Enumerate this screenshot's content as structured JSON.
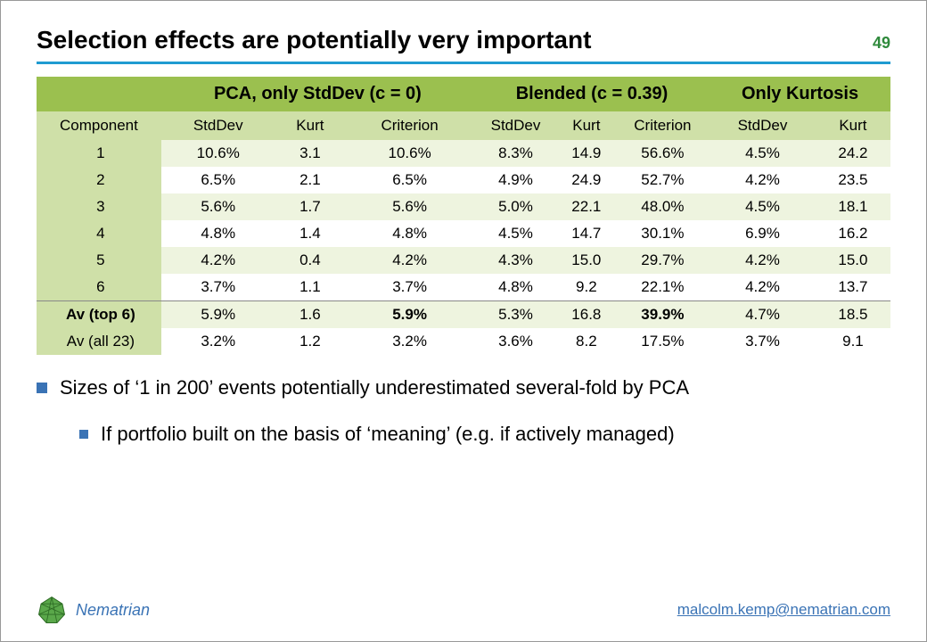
{
  "colors": {
    "accent_rule": "#1f9bd1",
    "accent_green": "#2f8a3c",
    "header_bg": "#9bc04f",
    "subheader_bg": "#cfe0a8",
    "row_even_bg": "#eef4df",
    "row_odd_bg": "#ffffff",
    "bullet_fill": "#3a73b5",
    "brand_color": "#3a73b5",
    "email_color": "#3a73b5",
    "text_color": "#000000"
  },
  "title": "Selection effects are potentially very important",
  "page_number": "49",
  "table": {
    "group_headers": [
      "",
      "PCA, only StdDev (c = 0)",
      "Blended (c = 0.39)",
      "Only Kurtosis"
    ],
    "group_spans": [
      1,
      3,
      3,
      2
    ],
    "sub_headers": [
      "Component",
      "StdDev",
      "Kurt",
      "Criterion",
      "StdDev",
      "Kurt",
      "Criterion",
      "StdDev",
      "Kurt"
    ],
    "rows": [
      {
        "label": "1",
        "cells": [
          "10.6%",
          "3.1",
          "10.6%",
          "8.3%",
          "14.9",
          "56.6%",
          "4.5%",
          "24.2"
        ],
        "bold_label": false,
        "even": true,
        "separator": false
      },
      {
        "label": "2",
        "cells": [
          "6.5%",
          "2.1",
          "6.5%",
          "4.9%",
          "24.9",
          "52.7%",
          "4.2%",
          "23.5"
        ],
        "bold_label": false,
        "even": false,
        "separator": false
      },
      {
        "label": "3",
        "cells": [
          "5.6%",
          "1.7",
          "5.6%",
          "5.0%",
          "22.1",
          "48.0%",
          "4.5%",
          "18.1"
        ],
        "bold_label": false,
        "even": true,
        "separator": false
      },
      {
        "label": "4",
        "cells": [
          "4.8%",
          "1.4",
          "4.8%",
          "4.5%",
          "14.7",
          "30.1%",
          "6.9%",
          "16.2"
        ],
        "bold_label": false,
        "even": false,
        "separator": false
      },
      {
        "label": "5",
        "cells": [
          "4.2%",
          "0.4",
          "4.2%",
          "4.3%",
          "15.0",
          "29.7%",
          "4.2%",
          "15.0"
        ],
        "bold_label": false,
        "even": true,
        "separator": false
      },
      {
        "label": "6",
        "cells": [
          "3.7%",
          "1.1",
          "3.7%",
          "4.8%",
          "9.2",
          "22.1%",
          "4.2%",
          "13.7"
        ],
        "bold_label": false,
        "even": false,
        "separator": false
      },
      {
        "label": "Av (top 6)",
        "cells": [
          "5.9%",
          "1.6",
          "5.9%",
          "5.3%",
          "16.8",
          "39.9%",
          "4.7%",
          "18.5"
        ],
        "bold_label": true,
        "even": true,
        "separator": true,
        "bold_cols": [
          2,
          5
        ]
      },
      {
        "label": "Av (all 23)",
        "cells": [
          "3.2%",
          "1.2",
          "3.2%",
          "3.6%",
          "8.2",
          "17.5%",
          "3.7%",
          "9.1"
        ],
        "bold_label": false,
        "even": false,
        "separator": false
      }
    ]
  },
  "bullets": {
    "level1": "Sizes of ‘1 in 200’ events potentially underestimated several-fold by PCA",
    "level2": "If portfolio built on the basis of ‘meaning’ (e.g. if actively managed)"
  },
  "footer": {
    "brand": "Nematrian",
    "email": "malcolm.kemp@nematrian.com"
  }
}
